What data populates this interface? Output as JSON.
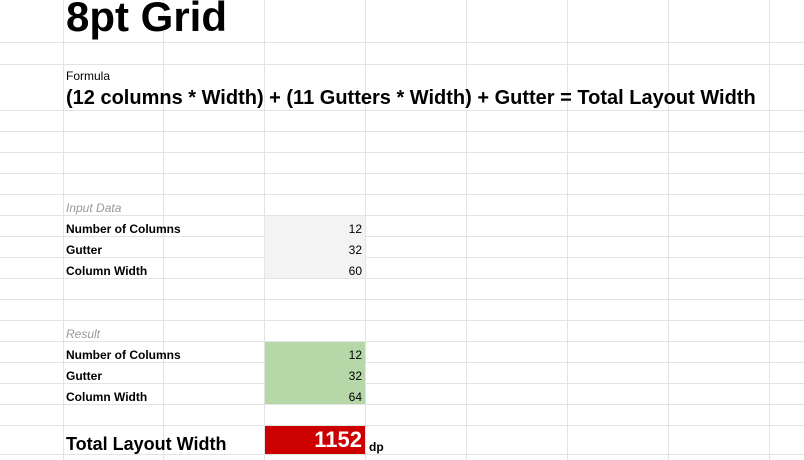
{
  "sheet": {
    "title": "8pt Grid",
    "formula_label": "Formula",
    "formula": "(12 columns * Width) + (11 Gutters * Width) + Gutter = Total Layout Width",
    "input": {
      "header": "Input Data",
      "rows": [
        {
          "label": "Number of Columns",
          "value": "12"
        },
        {
          "label": "Gutter",
          "value": "32"
        },
        {
          "label": "Column Width",
          "value": "60"
        }
      ]
    },
    "result": {
      "header": "Result",
      "rows": [
        {
          "label": "Number of Columns",
          "value": "12"
        },
        {
          "label": "Gutter",
          "value": "32"
        },
        {
          "label": "Column Width",
          "value": "64"
        }
      ]
    },
    "total": {
      "label": "Total Layout Width",
      "value": "1152",
      "unit": "dp"
    }
  },
  "colors": {
    "input_fill": "#f3f3f3",
    "result_fill": "#b6d7a8",
    "total_fill": "#cc0000",
    "gridline": "#e2e3e3",
    "section_text": "#999999"
  }
}
